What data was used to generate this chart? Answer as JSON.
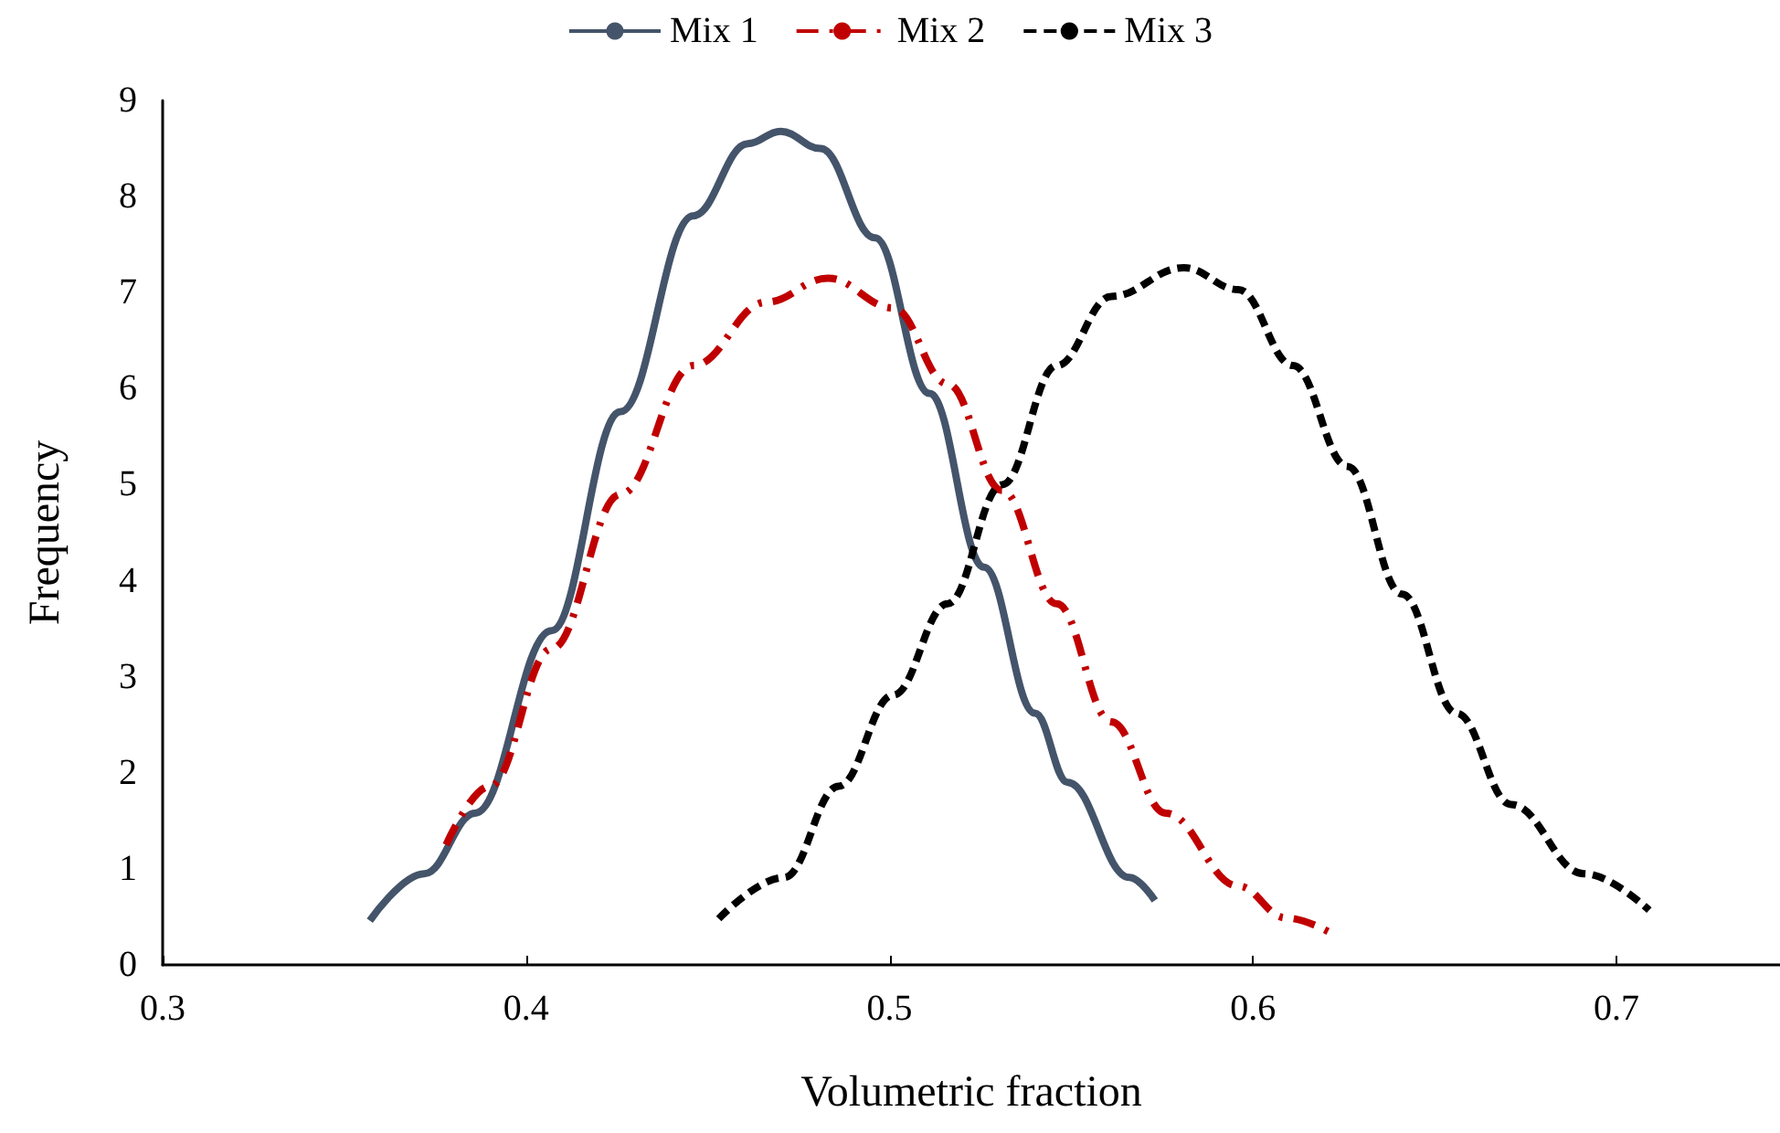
{
  "chart_data": {
    "type": "line",
    "xlabel": "Volumetric fraction",
    "ylabel": "Frequency",
    "xlim": [
      0.3,
      0.745
    ],
    "xticks": [
      0.3,
      0.4,
      0.5,
      0.6,
      0.7
    ],
    "ylim": [
      0,
      9
    ],
    "yticks": [
      0,
      1,
      2,
      3,
      4,
      5,
      6,
      7,
      8,
      9
    ],
    "grid": false,
    "legend": "top",
    "marker": "none",
    "series": [
      {
        "name": "Mix 1",
        "color": "#44546a",
        "line_style": "solid",
        "x": [
          0.357,
          0.372,
          0.386,
          0.407,
          0.426,
          0.446,
          0.461,
          0.47,
          0.481,
          0.496,
          0.511,
          0.526,
          0.54,
          0.549,
          0.566,
          0.573
        ],
        "values": [
          0.46,
          0.95,
          1.58,
          3.48,
          5.76,
          7.8,
          8.55,
          8.68,
          8.5,
          7.57,
          5.95,
          4.14,
          2.62,
          1.9,
          0.91,
          0.67
        ]
      },
      {
        "name": "Mix 2",
        "color": "#c00000",
        "line_style": "dashdot",
        "x": [
          0.378,
          0.39,
          0.407,
          0.426,
          0.446,
          0.466,
          0.483,
          0.501,
          0.516,
          0.531,
          0.546,
          0.561,
          0.576,
          0.596,
          0.609,
          0.623
        ],
        "values": [
          1.25,
          1.86,
          3.29,
          4.9,
          6.24,
          6.9,
          7.15,
          6.84,
          6.05,
          4.94,
          3.76,
          2.53,
          1.58,
          0.82,
          0.49,
          0.3
        ]
      },
      {
        "name": "Mix 3",
        "color": "#000000",
        "line_style": "dashed",
        "x": [
          0.453,
          0.471,
          0.486,
          0.501,
          0.516,
          0.531,
          0.546,
          0.561,
          0.581,
          0.596,
          0.611,
          0.626,
          0.641,
          0.656,
          0.671,
          0.691,
          0.709
        ],
        "values": [
          0.48,
          0.91,
          1.86,
          2.81,
          3.76,
          5.0,
          6.24,
          6.96,
          7.26,
          7.03,
          6.24,
          5.19,
          3.86,
          2.62,
          1.67,
          0.95,
          0.57
        ]
      }
    ]
  }
}
